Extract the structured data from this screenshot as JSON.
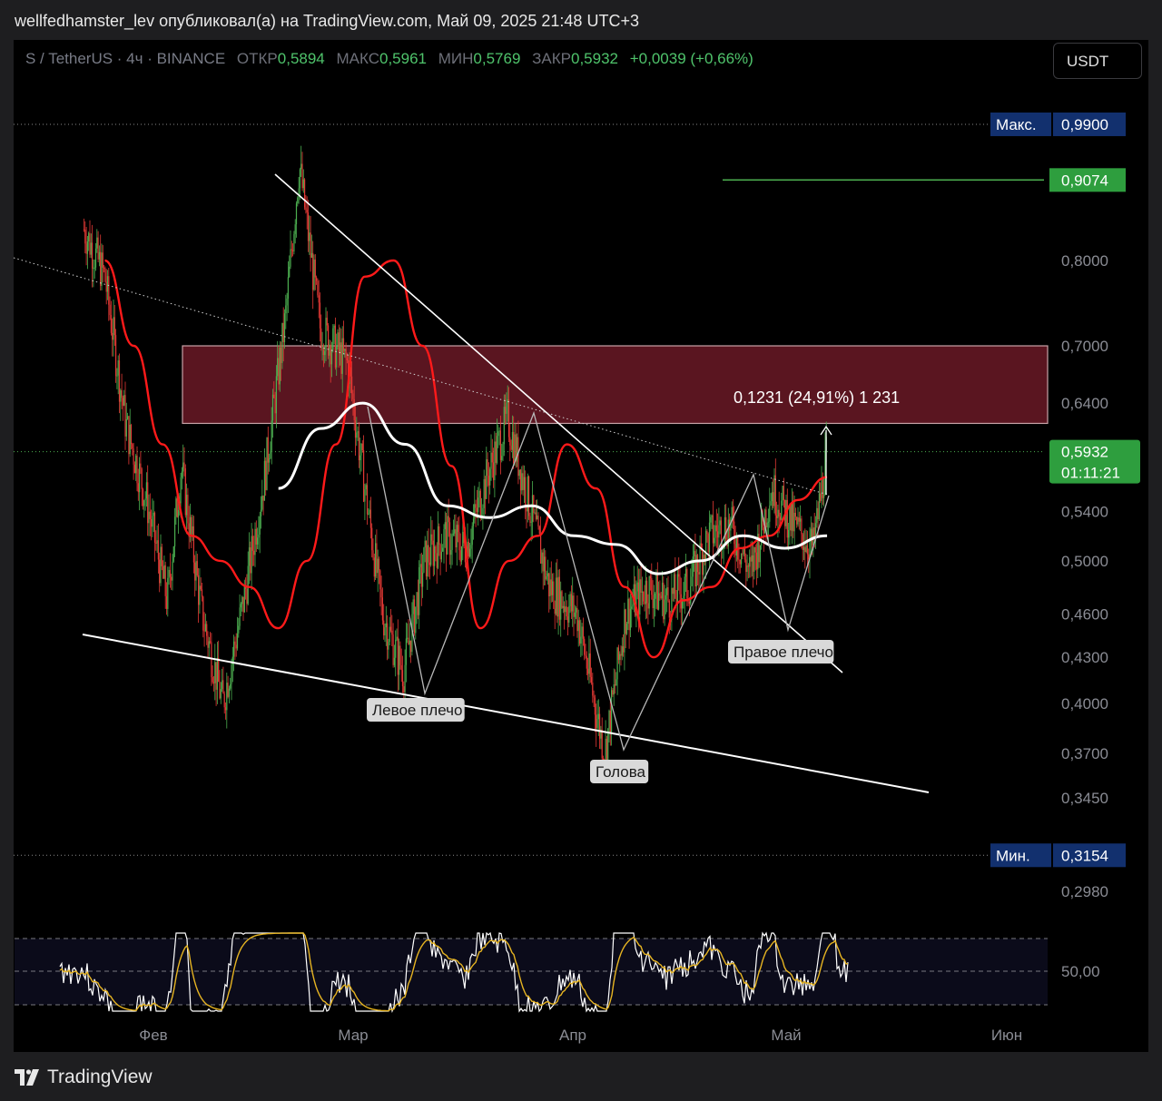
{
  "header": {
    "publish_line": "wellfedhamster_lev опубликовал(а) на TradingView.com, Май 09, 2025 21:48 UTC+3"
  },
  "legend": {
    "symbol": "S / TetherUS · 4ч · BINANCE",
    "open_label": "ОТКР",
    "open_value": "0,5894",
    "high_label": "МАКС",
    "high_value": "0,5961",
    "low_label": "МИН",
    "low_value": "0,5769",
    "close_label": "ЗАКР",
    "close_value": "0,5932",
    "change": "+0,0039 (+0,66%)"
  },
  "currency_button": "USDT",
  "footer": {
    "brand": "TradingView"
  },
  "colors": {
    "up": "#4caf50",
    "down": "#e53935",
    "zone": "#5a1520",
    "ema_fast": "#ff1a1a",
    "ma_white": "#ffffff",
    "rsi_line": "#ffffff",
    "rsi_ma": "#e6b422",
    "accent_green": "#2e9e3e",
    "accent_navy": "#12306e"
  },
  "chart_data": {
    "type": "line",
    "title": "S / TetherUS · 4ч · BINANCE",
    "x_ticks": [
      "Фев",
      "Мар",
      "Апр",
      "Май",
      "Июн"
    ],
    "y_scale": "log",
    "y_ticks": [
      "0,8000",
      "0,7000",
      "0,6400",
      "0,5400",
      "0,5000",
      "0,4600",
      "0,4300",
      "0,4000",
      "0,3700",
      "0,3450",
      "0,2980"
    ],
    "price_tags": {
      "max_label": "Макс.",
      "max_value": "0,9900",
      "target_value": "0,9074",
      "last_value": "0,5932",
      "countdown": "01:11:21",
      "min_label": "Мин.",
      "min_value": "0,3154"
    },
    "price_path": [
      [
        "Jan 22",
        0.84
      ],
      [
        "Jan 25",
        0.78
      ],
      [
        "Jan 28",
        0.62
      ],
      [
        "Jan 31",
        0.55
      ],
      [
        "Feb 03",
        0.47
      ],
      [
        "Feb 05",
        0.58
      ],
      [
        "Feb 08",
        0.46
      ],
      [
        "Feb 11",
        0.4
      ],
      [
        "Feb 14",
        0.47
      ],
      [
        "Feb 17",
        0.57
      ],
      [
        "Feb 20",
        0.73
      ],
      [
        "Feb 22",
        0.93
      ],
      [
        "Feb 25",
        0.72
      ],
      [
        "Mar 01",
        0.68
      ],
      [
        "Mar 03",
        0.58
      ],
      [
        "Mar 06",
        0.46
      ],
      [
        "Mar 09",
        0.42
      ],
      [
        "Mar 12",
        0.5
      ],
      [
        "Mar 15",
        0.52
      ],
      [
        "Mar 18",
        0.51
      ],
      [
        "Mar 21",
        0.57
      ],
      [
        "Mar 24",
        0.625
      ],
      [
        "Mar 27",
        0.55
      ],
      [
        "Mar 30",
        0.48
      ],
      [
        "Apr 03",
        0.46
      ],
      [
        "Apr 06",
        0.39
      ],
      [
        "Apr 07",
        0.37
      ],
      [
        "Apr 10",
        0.46
      ],
      [
        "Apr 13",
        0.48
      ],
      [
        "Apr 16",
        0.47
      ],
      [
        "Apr 19",
        0.48
      ],
      [
        "Apr 22",
        0.52
      ],
      [
        "Apr 25",
        0.53
      ],
      [
        "Apr 28",
        0.49
      ],
      [
        "May 01",
        0.56
      ],
      [
        "May 04",
        0.53
      ],
      [
        "May 07",
        0.51
      ],
      [
        "May 09",
        0.5932
      ]
    ],
    "series": [
      {
        "values": [
          0.8,
          0.7,
          0.6,
          0.52,
          0.5,
          0.48,
          0.45,
          0.5,
          0.6,
          0.78,
          0.8,
          0.7,
          0.58,
          0.45,
          0.5,
          0.52,
          0.6,
          0.56,
          0.48,
          0.43,
          0.47,
          0.48,
          0.51,
          0.52,
          0.55,
          0.57
        ]
      },
      {
        "values": [
          0.56,
          0.615,
          0.64,
          0.6,
          0.545,
          0.535,
          0.545,
          0.52,
          0.513,
          0.49,
          0.5,
          0.52,
          0.51,
          0.52
        ]
      }
    ],
    "annotations": {
      "left_shoulder": "Левое плечо",
      "head": "Голова",
      "right_shoulder": "Правое плечо",
      "measure": "0,1231 (24,91%) 1 231"
    },
    "resistance_zone": [
      0.62,
      0.7
    ],
    "rsi": {
      "level_label": "50,00"
    },
    "grid": false,
    "legend_position": "top-left"
  }
}
